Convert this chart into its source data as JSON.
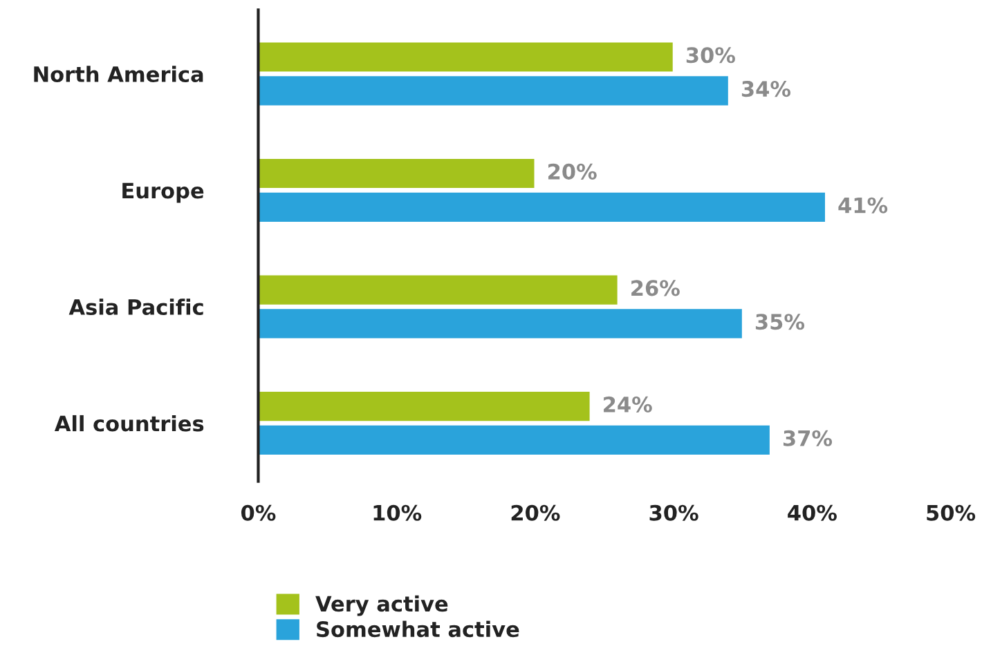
{
  "chart_data": {
    "type": "bar",
    "orientation": "horizontal",
    "categories": [
      "North America",
      "Europe",
      "Asia Pacific",
      "All countries"
    ],
    "series": [
      {
        "name": "Very active",
        "color": "#a4c21c",
        "values": [
          30,
          20,
          26,
          24
        ],
        "value_labels": [
          "30%",
          "20%",
          "26%",
          "24%"
        ]
      },
      {
        "name": "Somewhat active",
        "color": "#2aa3db",
        "values": [
          34,
          41,
          35,
          37
        ],
        "value_labels": [
          "34%",
          "41%",
          "35%",
          "37%"
        ]
      }
    ],
    "xlim": [
      0,
      50
    ],
    "xticks": [
      {
        "value": 0,
        "label": "0%"
      },
      {
        "value": 10,
        "label": "10%"
      },
      {
        "value": 20,
        "label": "20%"
      },
      {
        "value": 30,
        "label": "30%"
      },
      {
        "value": 40,
        "label": "40%"
      },
      {
        "value": 50,
        "label": "50%"
      }
    ],
    "grid": false,
    "legend": "bottom left"
  }
}
